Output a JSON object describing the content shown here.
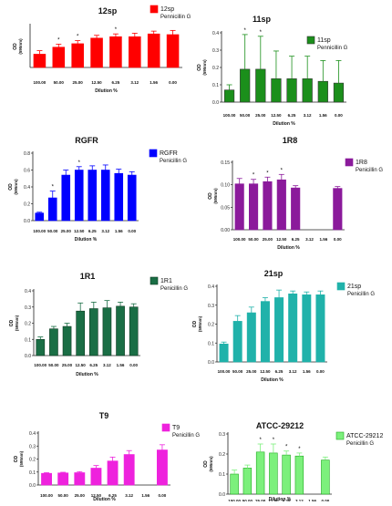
{
  "chart_data": [
    {
      "type": "bar",
      "title": "12sp",
      "legend": "12sp",
      "legend2": "Pennicillin G",
      "ylabel": "OD",
      "ylabel2": "(595nm)",
      "xlabel": "Dilution %",
      "categories": [
        "100.00",
        "50.00",
        "25.00",
        "12.50",
        "6.25",
        "3.12",
        "1.56",
        "0.00"
      ],
      "values": [
        0.095,
        0.145,
        0.17,
        0.21,
        0.22,
        0.22,
        0.24,
        0.235
      ],
      "errors": [
        0.025,
        0.022,
        0.022,
        0.02,
        0.02,
        0.025,
        0.02,
        0.03
      ],
      "stars": [
        "",
        "*",
        "*",
        "",
        "*",
        "",
        "",
        ""
      ],
      "yticks": [],
      "ylim": [
        0,
        0.3
      ],
      "bar_color": "#ff0000",
      "legend_position": "top-right"
    },
    {
      "type": "bar",
      "title": "11sp",
      "legend": "11sp",
      "legend2": "Pennicillin G",
      "ylabel": "OD",
      "ylabel2": "(595nm)",
      "xlabel": "Dilution %",
      "categories": [
        "100.00",
        "50.00",
        "25.00",
        "12.50",
        "6.25",
        "3.12",
        "1.56",
        "0.00"
      ],
      "values": [
        0.07,
        0.19,
        0.19,
        0.135,
        0.135,
        0.135,
        0.12,
        0.11
      ],
      "errors": [
        0.03,
        0.2,
        0.19,
        0.16,
        0.13,
        0.13,
        0.12,
        0.13
      ],
      "stars": [
        "",
        "*",
        "*",
        "",
        "",
        "",
        "",
        ""
      ],
      "yticks": [
        "0.0",
        "0.1",
        "0.2",
        "0.3",
        "0.4"
      ],
      "ylim": [
        0,
        0.4
      ],
      "bar_color": "#1b8f1b",
      "legend_position": "top-right"
    },
    {
      "type": "bar",
      "title": "RGFR",
      "legend": "RGFR",
      "legend2": "Penicillin G",
      "ylabel": "OD",
      "ylabel2": "(595nm)",
      "xlabel": "Dilution %",
      "categories": [
        "100.00",
        "50.00",
        "25.00",
        "12.50",
        "6.25",
        "3.12",
        "1.56",
        "0.00"
      ],
      "values": [
        0.09,
        0.27,
        0.54,
        0.6,
        0.6,
        0.6,
        0.56,
        0.54
      ],
      "errors": [
        0.01,
        0.08,
        0.06,
        0.04,
        0.05,
        0.06,
        0.05,
        0.04
      ],
      "stars": [
        "",
        "*",
        "",
        "*",
        "",
        "",
        "",
        ""
      ],
      "yticks": [
        "0.0",
        "0.2",
        "0.4",
        "0.6",
        "0.8"
      ],
      "ylim": [
        0,
        0.8
      ],
      "bar_color": "#0000ff",
      "legend_position": "top-right"
    },
    {
      "type": "bar",
      "title": "1R8",
      "legend": "1R8",
      "legend2": "Penicillin G",
      "ylabel": "OD",
      "ylabel2": "(595nm)",
      "xlabel": "Dilution %",
      "categories": [
        "100.00",
        "50.00",
        "25.00",
        "12.50",
        "6.25",
        "3.12",
        "1.56",
        "0.00"
      ],
      "values": [
        0.102,
        0.102,
        0.107,
        0.111,
        0.093,
        null,
        null,
        0.092
      ],
      "errors": [
        0.012,
        0.01,
        0.01,
        0.012,
        0.005,
        null,
        null,
        0.004
      ],
      "stars": [
        "",
        "*",
        "*",
        "*",
        "",
        "",
        "",
        ""
      ],
      "yticks": [
        "0.00",
        "0.05",
        "0.10",
        "0.15"
      ],
      "ylim": [
        0,
        0.15
      ],
      "bar_color": "#8b1a9b",
      "legend_position": "top-right"
    },
    {
      "type": "bar",
      "title": "1R1",
      "legend": "1R1",
      "legend2": "Penicillin G",
      "ylabel": "OD",
      "ylabel2": "(595nm)",
      "xlabel": "Dilution %",
      "categories": [
        "100.00",
        "50.00",
        "25.00",
        "12.50",
        "6.25",
        "3.12",
        "1.56",
        "0.00"
      ],
      "values": [
        0.1,
        0.165,
        0.18,
        0.275,
        0.29,
        0.295,
        0.305,
        0.3
      ],
      "errors": [
        0.015,
        0.015,
        0.02,
        0.05,
        0.04,
        0.045,
        0.025,
        0.02
      ],
      "stars": [
        "",
        "",
        "",
        "",
        "",
        "",
        "",
        ""
      ],
      "yticks": [
        "0.0",
        "0.1",
        "0.2",
        "0.3",
        "0.4"
      ],
      "ylim": [
        0,
        0.4
      ],
      "bar_color": "#1a6e45",
      "legend_position": "top-right"
    },
    {
      "type": "bar",
      "title": "21sp",
      "legend": "21sp",
      "legend2": "Penicillin G",
      "ylabel": "OD",
      "ylabel2": "(595nm)",
      "xlabel": "Dilution %",
      "categories": [
        "100.00",
        "50.00",
        "25.00",
        "12.50",
        "6.25",
        "3.12",
        "1.56",
        "0.00"
      ],
      "values": [
        0.095,
        0.215,
        0.26,
        0.32,
        0.34,
        0.36,
        0.355,
        0.355
      ],
      "errors": [
        0.01,
        0.03,
        0.03,
        0.02,
        0.04,
        0.015,
        0.015,
        0.02
      ],
      "stars": [
        "",
        "",
        "",
        "",
        "",
        "",
        "",
        ""
      ],
      "yticks": [
        "0.0",
        "0.1",
        "0.2",
        "0.3",
        "0.4"
      ],
      "ylim": [
        0,
        0.4
      ],
      "bar_color": "#20b2aa",
      "legend_position": "top-right"
    },
    {
      "type": "bar",
      "title": "T9",
      "legend": "T9",
      "legend2": "Penicillin G",
      "ylabel": "OD",
      "ylabel2": "(595nm)",
      "xlabel": "Dilution %",
      "categories": [
        "100.00",
        "50.00",
        "25.00",
        "12.50",
        "6.25",
        "3.12",
        "1.56",
        "0.00"
      ],
      "values": [
        0.09,
        0.093,
        0.095,
        0.13,
        0.185,
        0.235,
        null,
        0.27
      ],
      "errors": [
        0.005,
        0.005,
        0.008,
        0.02,
        0.03,
        0.03,
        null,
        0.04
      ],
      "stars": [
        "",
        "",
        "",
        "",
        "",
        "",
        "",
        ""
      ],
      "yticks": [
        "0.0",
        "0.1",
        "0.2",
        "0.3",
        "0.4"
      ],
      "ylim": [
        0,
        0.4
      ],
      "bar_color": "#ee22dd",
      "legend_position": "top-right"
    },
    {
      "type": "bar",
      "title": "ATCC-29212",
      "legend": "ATCC-29212",
      "legend2": "Penicillin G",
      "ylabel": "OD",
      "ylabel2": "(595nm)",
      "xlabel": "Dilution %",
      "categories": [
        "100.00",
        "50.00",
        "25.00",
        "12.50",
        "6.25",
        "3.12",
        "1.56",
        "0.00"
      ],
      "values": [
        0.1,
        0.13,
        0.21,
        0.205,
        0.195,
        0.19,
        null,
        0.17
      ],
      "errors": [
        0.02,
        0.015,
        0.04,
        0.045,
        0.02,
        0.015,
        null,
        0.015
      ],
      "stars": [
        "",
        "",
        "*",
        "*",
        "*",
        "*",
        "",
        ""
      ],
      "yticks": [
        "0.0",
        "0.1",
        "0.2",
        "0.3"
      ],
      "ylim": [
        0,
        0.3
      ],
      "bar_color": "#7cf07c",
      "legend_position": "top-right"
    }
  ]
}
